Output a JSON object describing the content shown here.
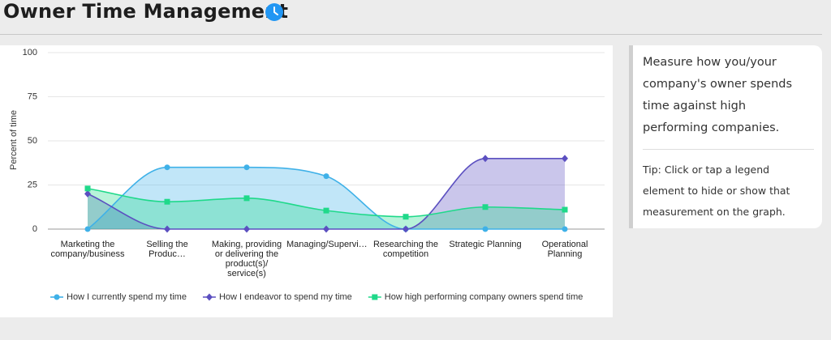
{
  "header": {
    "title": "Owner Time Management"
  },
  "chart_data": {
    "type": "line",
    "categories": [
      "Marketing the company/business",
      "Selling the Produc…",
      "Making, providing or delivering the product(s)/ service(s)",
      "Managing/Supervi…",
      "Researching the competition",
      "Strategic Planning",
      "Operational Planning"
    ],
    "y_label": "Percent of time",
    "series": [
      {
        "name": "How I currently spend my time",
        "color": "#3fb1e8",
        "marker": "circle",
        "values": [
          0,
          35,
          35,
          30,
          0,
          0,
          0
        ]
      },
      {
        "name": "How I endeavor to spend my time",
        "color": "#5b4fc0",
        "marker": "diamond",
        "values": [
          20,
          0,
          0,
          0,
          0,
          40,
          40
        ]
      },
      {
        "name": "How high performing company owners spend time",
        "color": "#1fd98a",
        "marker": "square",
        "values": [
          23,
          15.5,
          17.5,
          10.5,
          7,
          12.5,
          11
        ]
      }
    ],
    "ylim": [
      0,
      100
    ],
    "yticks": [
      0,
      25,
      50,
      75,
      100
    ],
    "grid": true,
    "area": true,
    "smooth": true,
    "legend": "bottom"
  },
  "info": {
    "description": "Measure how you/your company's owner spends time against high performing companies.",
    "tip": "Tip: Click or tap a legend element to hide or show that measurement on the graph."
  }
}
